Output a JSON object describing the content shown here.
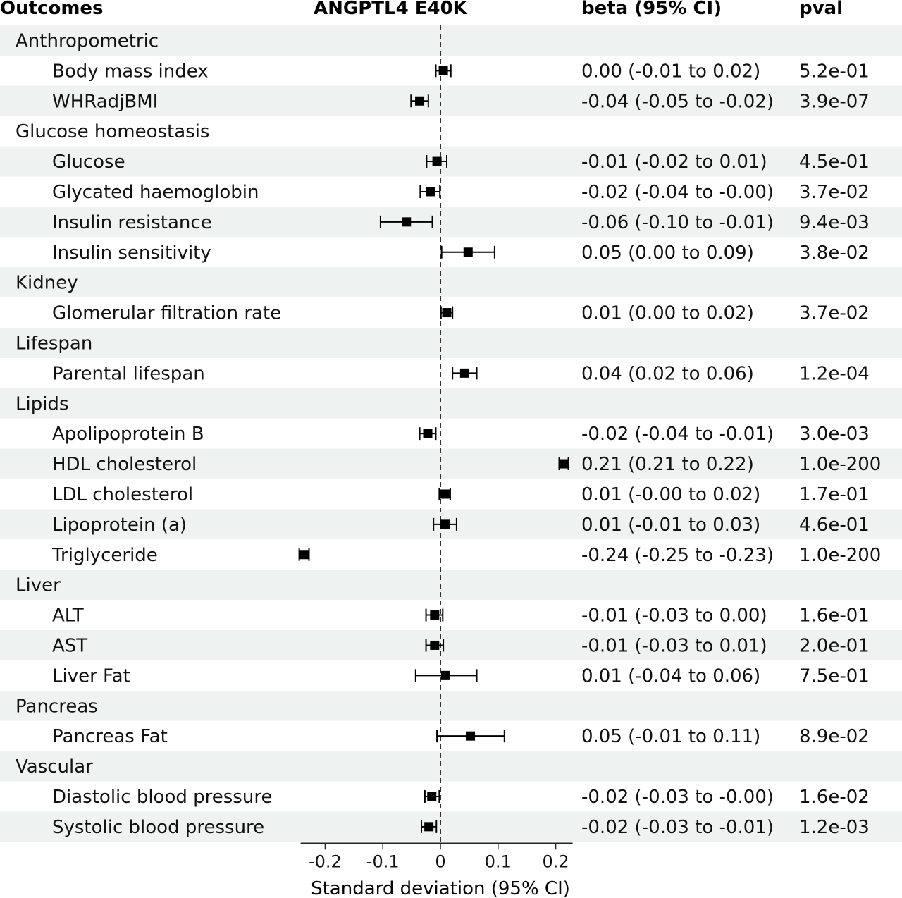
{
  "headers": {
    "outcomes": "Outcomes",
    "exposure": "ANGPTL4 E40K",
    "beta": "beta (95% CI)",
    "pval": "pval"
  },
  "chart_data": {
    "type": "forest",
    "xlabel": "Standard deviation (95% CI)",
    "xticks": [
      "-0.2",
      "-0.1",
      "0",
      "0.1",
      "0.2"
    ],
    "xtick_values": [
      -0.2,
      -0.1,
      0,
      0.1,
      0.2
    ],
    "xlim": [
      -0.245,
      0.222
    ],
    "reference_line": 0,
    "rows": [
      {
        "kind": "category",
        "label": "Anthropometric"
      },
      {
        "kind": "item",
        "label": "Body mass index",
        "beta": 0.005,
        "lo": -0.008,
        "hi": 0.018,
        "ci_text": "0.00 (-0.01 to 0.02)",
        "pval": "5.2e-01"
      },
      {
        "kind": "item",
        "label": "WHRadjBMI",
        "beta": -0.036,
        "lo": -0.051,
        "hi": -0.021,
        "ci_text": "-0.04 (-0.05 to -0.02)",
        "pval": "3.9e-07"
      },
      {
        "kind": "category",
        "label": "Glucose homeostasis"
      },
      {
        "kind": "item",
        "label": "Glucose",
        "beta": -0.006,
        "lo": -0.024,
        "hi": 0.011,
        "ci_text": "-0.01 (-0.02 to 0.01)",
        "pval": "4.5e-01"
      },
      {
        "kind": "item",
        "label": "Glycated haemoglobin",
        "beta": -0.017,
        "lo": -0.035,
        "hi": -0.001,
        "ci_text": "-0.02 (-0.04 to -0.00)",
        "pval": "3.7e-02"
      },
      {
        "kind": "item",
        "label": "Insulin resistance",
        "beta": -0.059,
        "lo": -0.104,
        "hi": -0.014,
        "ci_text": "-0.06 (-0.10 to -0.01)",
        "pval": "9.4e-03"
      },
      {
        "kind": "item",
        "label": "Insulin sensitivity",
        "beta": 0.048,
        "lo": 0.002,
        "hi": 0.094,
        "ci_text": "0.05 (0.00 to 0.09)",
        "pval": "3.8e-02"
      },
      {
        "kind": "category",
        "label": "Kidney"
      },
      {
        "kind": "item",
        "label": "Glomerular filtration rate",
        "beta": 0.011,
        "lo": 0.001,
        "hi": 0.021,
        "ci_text": "0.01 (0.00 to 0.02)",
        "pval": "3.7e-02"
      },
      {
        "kind": "category",
        "label": "Lifespan"
      },
      {
        "kind": "item",
        "label": "Parental lifespan",
        "beta": 0.042,
        "lo": 0.021,
        "hi": 0.063,
        "ci_text": "0.04 (0.02 to 0.06)",
        "pval": "1.2e-04"
      },
      {
        "kind": "category",
        "label": "Lipids"
      },
      {
        "kind": "item",
        "label": "Apolipoprotein B",
        "beta": -0.022,
        "lo": -0.036,
        "hi": -0.008,
        "ci_text": "-0.02 (-0.04 to -0.01)",
        "pval": "3.0e-03"
      },
      {
        "kind": "item",
        "label": "HDL cholesterol",
        "beta": 0.214,
        "lo": 0.206,
        "hi": 0.222,
        "ci_text": "0.21 (0.21 to 0.22)",
        "pval": "1.0e-200"
      },
      {
        "kind": "item",
        "label": "LDL cholesterol",
        "beta": 0.008,
        "lo": -0.002,
        "hi": 0.017,
        "ci_text": "0.01 (-0.00 to 0.02)",
        "pval": "1.7e-01"
      },
      {
        "kind": "item",
        "label": "Lipoprotein (a)",
        "beta": 0.008,
        "lo": -0.012,
        "hi": 0.028,
        "ci_text": "0.01 (-0.01 to 0.03)",
        "pval": "4.6e-01"
      },
      {
        "kind": "item",
        "label": "Triglyceride",
        "beta": -0.237,
        "lo": -0.245,
        "hi": -0.228,
        "ci_text": "-0.24 (-0.25 to -0.23)",
        "pval": "1.0e-200"
      },
      {
        "kind": "category",
        "label": "Liver"
      },
      {
        "kind": "item",
        "label": "ALT",
        "beta": -0.01,
        "lo": -0.025,
        "hi": 0.004,
        "ci_text": "-0.01 (-0.03 to 0.00)",
        "pval": "1.6e-01"
      },
      {
        "kind": "item",
        "label": "AST",
        "beta": -0.01,
        "lo": -0.025,
        "hi": 0.005,
        "ci_text": "-0.01 (-0.03 to 0.01)",
        "pval": "2.0e-01"
      },
      {
        "kind": "item",
        "label": "Liver Fat",
        "beta": 0.009,
        "lo": -0.043,
        "hi": 0.063,
        "ci_text": "0.01 (-0.04 to 0.06)",
        "pval": "7.5e-01"
      },
      {
        "kind": "category",
        "label": "Pancreas"
      },
      {
        "kind": "item",
        "label": "Pancreas Fat",
        "beta": 0.052,
        "lo": -0.006,
        "hi": 0.111,
        "ci_text": "0.05 (-0.01 to 0.11)",
        "pval": "8.9e-02"
      },
      {
        "kind": "category",
        "label": "Vascular"
      },
      {
        "kind": "item",
        "label": "Diastolic blood pressure",
        "beta": -0.015,
        "lo": -0.027,
        "hi": -0.002,
        "ci_text": "-0.02 (-0.03 to -0.00)",
        "pval": "1.6e-02"
      },
      {
        "kind": "item",
        "label": "Systolic blood pressure",
        "beta": -0.02,
        "lo": -0.033,
        "hi": -0.007,
        "ci_text": "-0.02 (-0.03 to -0.01)",
        "pval": "1.2e-03"
      }
    ],
    "colors": {
      "band": "#eef2f0",
      "marker": "#000000",
      "text": "#111111"
    }
  }
}
